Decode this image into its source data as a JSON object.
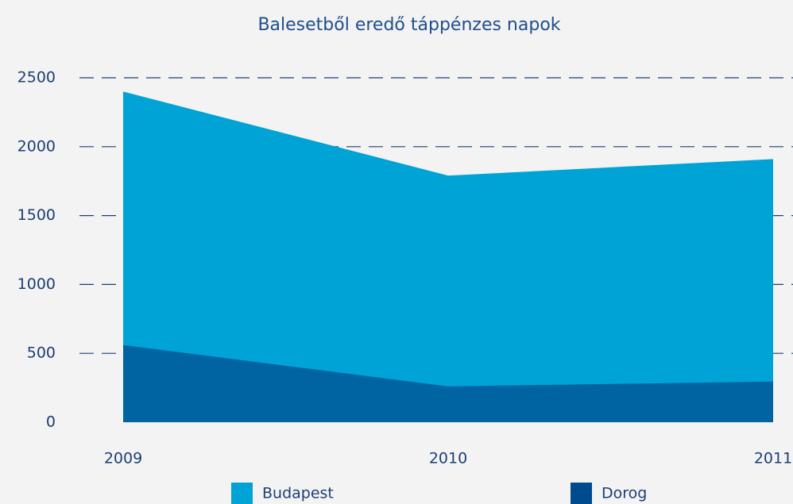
{
  "chart_data": {
    "type": "area",
    "title": "Balesetből eredő táppénzes napok",
    "x": [
      2009,
      2010,
      2011
    ],
    "series": [
      {
        "name": "Budapest",
        "color": "#00a3d6",
        "values": [
          2400,
          1790,
          1910
        ]
      },
      {
        "name": "Dorog",
        "color": "#004b8d",
        "values": [
          560,
          260,
          295
        ]
      }
    ],
    "xlim": [
      2009,
      2011
    ],
    "ylim": [
      0,
      2500
    ],
    "yticks": [
      0,
      500,
      1000,
      1500,
      2000,
      2500
    ],
    "grid": true
  }
}
